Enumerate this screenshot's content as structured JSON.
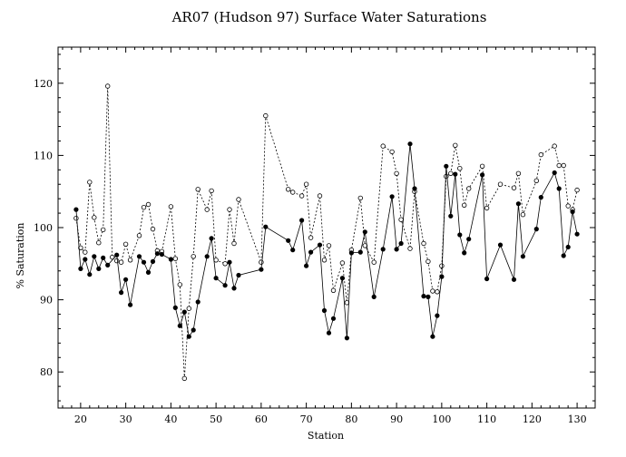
{
  "chart_data": {
    "type": "scatter",
    "title": "AR07 (Hudson 97) Surface Water Saturations",
    "xlabel": "Station",
    "ylabel": "% Saturation",
    "xlim": [
      15,
      134
    ],
    "ylim": [
      75,
      125
    ],
    "xticks": [
      "20",
      "30",
      "40",
      "50",
      "60",
      "70",
      "80",
      "90",
      "100",
      "110",
      "120",
      "130"
    ],
    "yticks": [
      "80",
      "90",
      "100",
      "110",
      "120"
    ],
    "grid": false,
    "legend": "none",
    "series": [
      {
        "style": "dashed line with open circles",
        "color": "#000000",
        "points": [
          [
            19,
            101.3
          ],
          [
            20,
            97.2
          ],
          [
            21,
            96.6
          ],
          [
            22,
            106.3
          ],
          [
            23,
            101.4
          ],
          [
            24,
            97.9
          ],
          [
            25,
            99.7
          ],
          [
            26,
            119.6
          ],
          [
            27,
            95.9
          ],
          [
            28,
            95.4
          ],
          [
            29,
            95.2
          ],
          [
            30,
            97.7
          ],
          [
            31,
            95.5
          ],
          [
            33,
            98.9
          ],
          [
            34,
            102.8
          ],
          [
            35,
            103.2
          ],
          [
            36,
            99.8
          ],
          [
            37,
            96.8
          ],
          [
            38,
            96.7
          ],
          [
            40,
            102.9
          ],
          [
            41,
            95.7
          ],
          [
            42,
            92.1
          ],
          [
            43,
            79.1
          ],
          [
            44,
            88.8
          ],
          [
            45,
            96.0
          ],
          [
            46,
            105.3
          ],
          [
            48,
            102.5
          ],
          [
            49,
            105.1
          ],
          [
            50,
            95.5
          ],
          [
            52,
            95.0
          ],
          [
            53,
            102.5
          ],
          [
            54,
            97.8
          ],
          [
            55,
            103.9
          ],
          [
            60,
            95.2
          ],
          [
            61,
            115.5
          ],
          [
            66,
            105.3
          ],
          [
            67,
            104.9
          ],
          [
            69,
            104.4
          ],
          [
            70,
            106.0
          ],
          [
            71,
            98.6
          ],
          [
            73,
            104.4
          ],
          [
            74,
            95.5
          ],
          [
            75,
            97.5
          ],
          [
            76,
            91.3
          ],
          [
            78,
            95.1
          ],
          [
            79,
            89.6
          ],
          [
            80,
            96.9
          ],
          [
            82,
            104.1
          ],
          [
            83,
            97.5
          ],
          [
            85,
            95.2
          ],
          [
            87,
            111.3
          ],
          [
            89,
            110.5
          ],
          [
            90,
            107.5
          ],
          [
            91,
            101.1
          ],
          [
            93,
            97.1
          ],
          [
            94,
            105.0
          ],
          [
            96,
            97.8
          ],
          [
            97,
            95.3
          ],
          [
            98,
            91.2
          ],
          [
            99,
            91.1
          ],
          [
            100,
            94.7
          ],
          [
            101,
            107.1
          ],
          [
            102,
            107.5
          ],
          [
            103,
            111.4
          ],
          [
            104,
            108.2
          ],
          [
            105,
            103.1
          ],
          [
            106,
            105.4
          ],
          [
            109,
            108.5
          ],
          [
            110,
            102.7
          ],
          [
            113,
            106.0
          ],
          [
            116,
            105.5
          ],
          [
            117,
            107.5
          ],
          [
            118,
            101.8
          ],
          [
            121,
            106.5
          ],
          [
            122,
            110.1
          ],
          [
            125,
            111.3
          ],
          [
            126,
            108.6
          ],
          [
            127,
            108.6
          ],
          [
            128,
            103.0
          ],
          [
            129,
            102.5
          ],
          [
            130,
            105.2
          ]
        ]
      },
      {
        "style": "solid line with filled circles",
        "color": "#000000",
        "points": [
          [
            19,
            102.5
          ],
          [
            20,
            94.3
          ],
          [
            21,
            95.6
          ],
          [
            22,
            93.5
          ],
          [
            23,
            96.0
          ],
          [
            24,
            94.3
          ],
          [
            25,
            95.8
          ],
          [
            26,
            94.8
          ],
          [
            28,
            96.2
          ],
          [
            29,
            91.0
          ],
          [
            30,
            92.8
          ],
          [
            31,
            89.3
          ],
          [
            33,
            96.0
          ],
          [
            34,
            95.2
          ],
          [
            35,
            93.8
          ],
          [
            36,
            95.3
          ],
          [
            37,
            96.4
          ],
          [
            38,
            96.3
          ],
          [
            40,
            95.6
          ],
          [
            41,
            88.9
          ],
          [
            42,
            86.4
          ],
          [
            43,
            88.3
          ],
          [
            44,
            84.9
          ],
          [
            45,
            85.8
          ],
          [
            46,
            89.7
          ],
          [
            48,
            96.0
          ],
          [
            49,
            98.5
          ],
          [
            50,
            93.0
          ],
          [
            52,
            92.0
          ],
          [
            53,
            95.2
          ],
          [
            54,
            91.6
          ],
          [
            55,
            93.4
          ],
          [
            60,
            94.2
          ],
          [
            61,
            100.1
          ],
          [
            66,
            98.2
          ],
          [
            67,
            96.9
          ],
          [
            69,
            101.0
          ],
          [
            70,
            94.7
          ],
          [
            71,
            96.6
          ],
          [
            73,
            97.6
          ],
          [
            74,
            88.5
          ],
          [
            75,
            85.4
          ],
          [
            76,
            87.4
          ],
          [
            78,
            93.0
          ],
          [
            79,
            84.7
          ],
          [
            80,
            96.5
          ],
          [
            82,
            96.6
          ],
          [
            83,
            99.4
          ],
          [
            85,
            90.4
          ],
          [
            87,
            97.0
          ],
          [
            89,
            104.3
          ],
          [
            90,
            97.0
          ],
          [
            91,
            97.8
          ],
          [
            93,
            111.6
          ],
          [
            94,
            105.4
          ],
          [
            96,
            90.5
          ],
          [
            97,
            90.4
          ],
          [
            98,
            84.9
          ],
          [
            99,
            87.8
          ],
          [
            100,
            93.2
          ],
          [
            101,
            108.5
          ],
          [
            102,
            101.6
          ],
          [
            103,
            107.4
          ],
          [
            104,
            99.0
          ],
          [
            105,
            96.5
          ],
          [
            106,
            98.4
          ],
          [
            109,
            107.3
          ],
          [
            110,
            92.9
          ],
          [
            113,
            97.6
          ],
          [
            116,
            92.8
          ],
          [
            117,
            103.3
          ],
          [
            118,
            96.0
          ],
          [
            121,
            99.8
          ],
          [
            122,
            104.2
          ],
          [
            125,
            107.6
          ],
          [
            126,
            105.4
          ],
          [
            127,
            96.1
          ],
          [
            128,
            97.3
          ],
          [
            129,
            102.2
          ],
          [
            130,
            99.1
          ]
        ]
      }
    ]
  }
}
